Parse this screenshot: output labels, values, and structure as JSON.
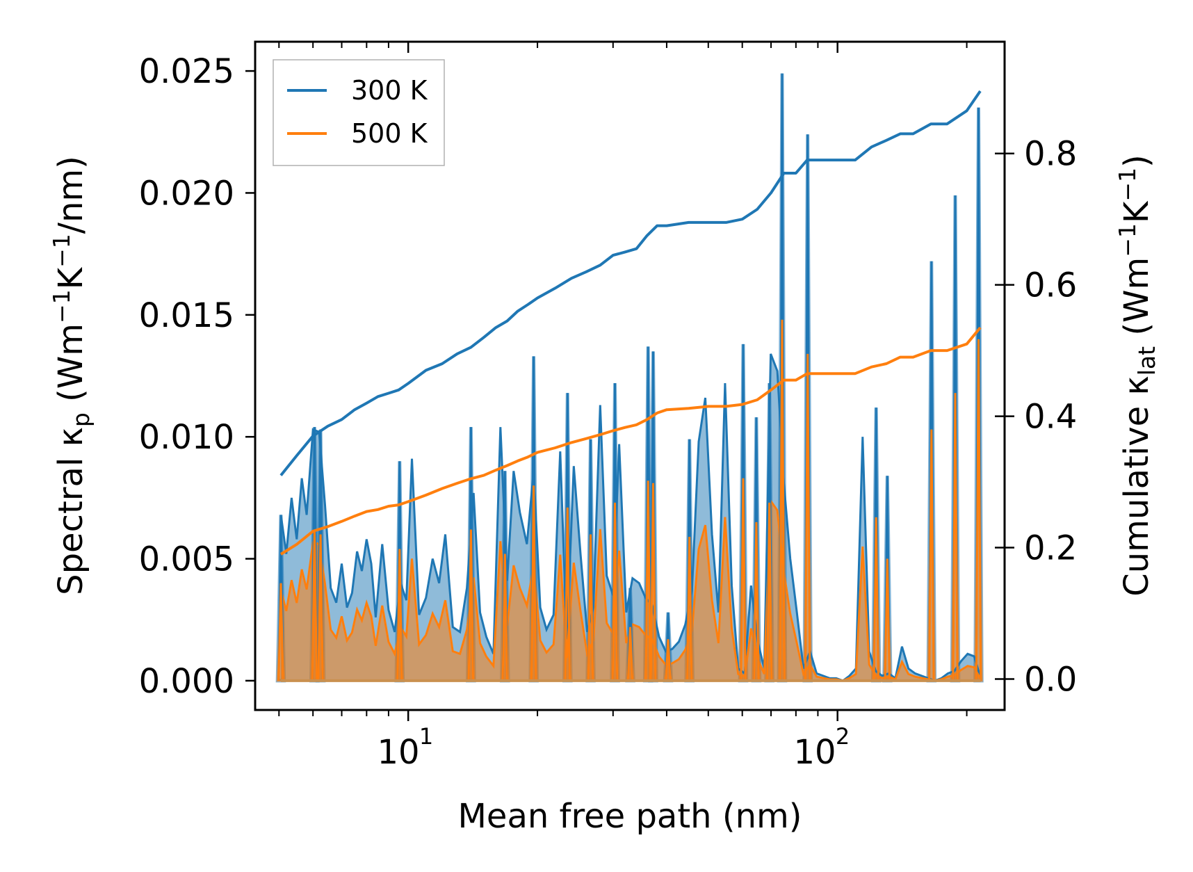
{
  "chart_data": {
    "type": "line",
    "xscale": "log",
    "xlabel": "Mean free path (nm)",
    "ylabel_left": {
      "main": "Spectral κ",
      "sub": "p",
      "unit_pre": " (Wm",
      "sup1": "−1",
      "unit_mid": "K",
      "sup2": "−1",
      "unit_post": "/nm)"
    },
    "ylabel_right": {
      "main": "Cumulative κ",
      "sub": "lat",
      "unit_pre": " (Wm",
      "sup1": "−1",
      "unit_mid": "K",
      "sup2": "−1",
      "unit_post": ")"
    },
    "xlim": [
      4.4,
      245
    ],
    "ylim_left": [
      -0.0012,
      0.0262
    ],
    "ylim_right": [
      -0.0471,
      0.9701
    ],
    "x_ticks": [
      {
        "value": 10,
        "base": "10",
        "exp": "1"
      },
      {
        "value": 100,
        "base": "10",
        "exp": "2"
      }
    ],
    "y_ticks_left": [
      "0.000",
      "0.005",
      "0.010",
      "0.015",
      "0.020",
      "0.025"
    ],
    "y_ticks_right": [
      "0.0",
      "0.2",
      "0.4",
      "0.6",
      "0.8"
    ],
    "colors": {
      "300K": "#1f77b4",
      "500K": "#ff7f0e"
    },
    "legend": {
      "position": "top-left",
      "entries": [
        "300 K",
        "500 K"
      ]
    },
    "series": [
      {
        "name": "300 K",
        "axis": "left",
        "kind": "spectral",
        "x": [
          5.05,
          5.2,
          5.35,
          5.5,
          5.65,
          5.8,
          6.0,
          6.2,
          6.4,
          6.6,
          6.8,
          7.0,
          7.2,
          7.4,
          7.6,
          7.8,
          8.0,
          8.2,
          8.4,
          8.7,
          9.0,
          9.3,
          9.6,
          9.9,
          10.2,
          10.6,
          11.0,
          11.4,
          11.8,
          12.2,
          12.7,
          13.2,
          13.7,
          14.2,
          14.7,
          15.2,
          15.8,
          16.4,
          17.0,
          17.6,
          18.2,
          18.9,
          19.6,
          20.3,
          21.0,
          21.8,
          22.6,
          23.4,
          24.3,
          25.2,
          26.1,
          27.0,
          28.0,
          29.0,
          30.0,
          31.0,
          32.2,
          33.3,
          34.5,
          35.7,
          37.0,
          38.4,
          39.8,
          41.2,
          42.7,
          44.2,
          45.8,
          47.5,
          49.2,
          51.0,
          52.8,
          54.7,
          56.7,
          58.7,
          60.8,
          62.9,
          65.2,
          67.5,
          69.9,
          72.4,
          75.0,
          77.6,
          80.4,
          83.3,
          86.3,
          89.4,
          92.6,
          95.9,
          99.3,
          102.9,
          106.6,
          110.4,
          114.4,
          118.5,
          122.7,
          127.1,
          131.7,
          136.4,
          141.3,
          146.3,
          151.6,
          157.0,
          162.6,
          168.4,
          174.5,
          180.7,
          187.2,
          193.9,
          200.9,
          208.1,
          215.5
        ],
        "y": [
          0.0068,
          0.0052,
          0.0075,
          0.0058,
          0.0083,
          0.0068,
          0.0103,
          0.0102,
          0.0072,
          0.0038,
          0.0032,
          0.0048,
          0.003,
          0.0036,
          0.0053,
          0.0045,
          0.0058,
          0.0048,
          0.0026,
          0.0056,
          0.0029,
          0.002,
          0.004,
          0.0033,
          0.0091,
          0.0027,
          0.0034,
          0.005,
          0.004,
          0.006,
          0.0022,
          0.002,
          0.0038,
          0.0077,
          0.0028,
          0.0018,
          0.0011,
          0.0104,
          0.0041,
          0.0086,
          0.0069,
          0.0056,
          0.0086,
          0.003,
          0.0021,
          0.0027,
          0.0094,
          0.0017,
          0.0088,
          0.0052,
          0.002,
          0.003,
          0.0113,
          0.0043,
          0.0035,
          0.0097,
          0.0028,
          0.0042,
          0.004,
          0.0034,
          0.0031,
          0.0018,
          0.0012,
          0.0013,
          0.0016,
          0.0023,
          0.0037,
          0.0098,
          0.0116,
          0.006,
          0.0028,
          0.0122,
          0.0039,
          0.0005,
          0.0003,
          0.0039,
          0.0016,
          0.0005,
          0.0134,
          0.0127,
          0.0081,
          0.005,
          0.0028,
          0.0005,
          0.0012,
          0.0003,
          0.0002,
          0.0001,
          0.0001,
          0.0,
          0.0002,
          0.0005,
          0.01,
          0.0012,
          0.0004,
          0.0002,
          0.0003,
          0.0001,
          0.0014,
          0.0005,
          0.0003,
          0.0002,
          0.0001,
          0.0,
          0.0001,
          0.0003,
          0.0004,
          0.0008,
          0.0011,
          0.001,
          0.0001
        ],
        "spikes": [
          {
            "x": 5.05,
            "y": 0.0068
          },
          {
            "x": 6.05,
            "y": 0.0104
          },
          {
            "x": 6.25,
            "y": 0.0103
          },
          {
            "x": 9.55,
            "y": 0.009
          },
          {
            "x": 14.0,
            "y": 0.0104
          },
          {
            "x": 16.8,
            "y": 0.0086
          },
          {
            "x": 19.6,
            "y": 0.0133
          },
          {
            "x": 23.5,
            "y": 0.0118
          },
          {
            "x": 26.6,
            "y": 0.0099
          },
          {
            "x": 30.3,
            "y": 0.0122
          },
          {
            "x": 32.9,
            "y": 0.0038
          },
          {
            "x": 36.2,
            "y": 0.0137
          },
          {
            "x": 37.2,
            "y": 0.0135
          },
          {
            "x": 40.3,
            "y": 0.0028
          },
          {
            "x": 45.2,
            "y": 0.0099
          },
          {
            "x": 60.3,
            "y": 0.0138
          },
          {
            "x": 64.7,
            "y": 0.0108
          },
          {
            "x": 69.4,
            "y": 0.0122
          },
          {
            "x": 74.3,
            "y": 0.0249
          },
          {
            "x": 85.2,
            "y": 0.0224
          },
          {
            "x": 123.0,
            "y": 0.0112
          },
          {
            "x": 130.6,
            "y": 0.0084
          },
          {
            "x": 165.5,
            "y": 0.0172
          },
          {
            "x": 188.0,
            "y": 0.0199
          },
          {
            "x": 213.0,
            "y": 0.0235
          }
        ]
      },
      {
        "name": "500 K",
        "axis": "left",
        "kind": "spectral",
        "spikes": [
          {
            "x": 5.05,
            "y": 0.004
          },
          {
            "x": 6.05,
            "y": 0.0062
          },
          {
            "x": 6.25,
            "y": 0.006
          },
          {
            "x": 9.55,
            "y": 0.0054
          },
          {
            "x": 14.0,
            "y": 0.0062
          },
          {
            "x": 16.8,
            "y": 0.0052
          },
          {
            "x": 19.6,
            "y": 0.008
          },
          {
            "x": 23.5,
            "y": 0.0071
          },
          {
            "x": 26.6,
            "y": 0.006
          },
          {
            "x": 30.3,
            "y": 0.0073
          },
          {
            "x": 32.9,
            "y": 0.0022
          },
          {
            "x": 36.2,
            "y": 0.0082
          },
          {
            "x": 37.2,
            "y": 0.0081
          },
          {
            "x": 40.3,
            "y": 0.0017
          },
          {
            "x": 45.2,
            "y": 0.0059
          },
          {
            "x": 60.3,
            "y": 0.0083
          },
          {
            "x": 64.7,
            "y": 0.0065
          },
          {
            "x": 69.4,
            "y": 0.0073
          },
          {
            "x": 74.3,
            "y": 0.0148
          },
          {
            "x": 85.2,
            "y": 0.0134
          },
          {
            "x": 123.0,
            "y": 0.0067
          },
          {
            "x": 130.6,
            "y": 0.005
          },
          {
            "x": 165.5,
            "y": 0.0103
          },
          {
            "x": 188.0,
            "y": 0.0118
          },
          {
            "x": 213.0,
            "y": 0.014
          }
        ]
      },
      {
        "name": "300 K",
        "axis": "right",
        "kind": "cumulative",
        "x": [
          5.05,
          5.5,
          6.0,
          6.5,
          7.0,
          7.5,
          8.0,
          8.5,
          9.0,
          9.5,
          10.0,
          11.0,
          12.0,
          13.0,
          14.0,
          15.0,
          16.0,
          17.0,
          18.0,
          19.0,
          20.0,
          22.0,
          24.0,
          26.0,
          28.0,
          30.0,
          32.0,
          34.0,
          36.0,
          38.0,
          40.0,
          45.0,
          50.0,
          55.0,
          60.0,
          65.0,
          70.0,
          75.0,
          80.0,
          85.0,
          90.0,
          100.0,
          110.0,
          120.0,
          130.0,
          140.0,
          150.0,
          165.0,
          180.0,
          200.0,
          215.0
        ],
        "y": [
          0.31,
          0.34,
          0.37,
          0.385,
          0.395,
          0.41,
          0.42,
          0.43,
          0.435,
          0.44,
          0.45,
          0.47,
          0.48,
          0.495,
          0.505,
          0.52,
          0.535,
          0.545,
          0.56,
          0.57,
          0.58,
          0.595,
          0.61,
          0.62,
          0.63,
          0.645,
          0.65,
          0.655,
          0.675,
          0.69,
          0.69,
          0.695,
          0.695,
          0.695,
          0.7,
          0.715,
          0.74,
          0.77,
          0.77,
          0.79,
          0.79,
          0.79,
          0.79,
          0.81,
          0.82,
          0.83,
          0.83,
          0.845,
          0.845,
          0.865,
          0.895
        ]
      },
      {
        "name": "500 K",
        "axis": "right",
        "kind": "cumulative",
        "x": [
          5.05,
          5.5,
          6.0,
          6.5,
          7.0,
          7.5,
          8.0,
          8.5,
          9.0,
          9.5,
          10.0,
          11.0,
          12.0,
          13.0,
          14.0,
          15.0,
          16.0,
          17.0,
          18.0,
          19.0,
          20.0,
          22.0,
          24.0,
          26.0,
          28.0,
          30.0,
          32.0,
          34.0,
          36.0,
          38.0,
          40.0,
          45.0,
          50.0,
          55.0,
          60.0,
          65.0,
          70.0,
          75.0,
          80.0,
          85.0,
          90.0,
          100.0,
          110.0,
          120.0,
          130.0,
          140.0,
          150.0,
          165.0,
          180.0,
          200.0,
          215.0
        ],
        "y": [
          0.19,
          0.205,
          0.225,
          0.232,
          0.24,
          0.248,
          0.255,
          0.258,
          0.263,
          0.265,
          0.27,
          0.28,
          0.29,
          0.298,
          0.305,
          0.31,
          0.318,
          0.325,
          0.332,
          0.338,
          0.345,
          0.352,
          0.36,
          0.366,
          0.372,
          0.378,
          0.383,
          0.387,
          0.395,
          0.405,
          0.41,
          0.412,
          0.415,
          0.415,
          0.418,
          0.425,
          0.44,
          0.455,
          0.455,
          0.465,
          0.465,
          0.465,
          0.465,
          0.475,
          0.48,
          0.49,
          0.49,
          0.5,
          0.5,
          0.51,
          0.535
        ]
      }
    ]
  }
}
